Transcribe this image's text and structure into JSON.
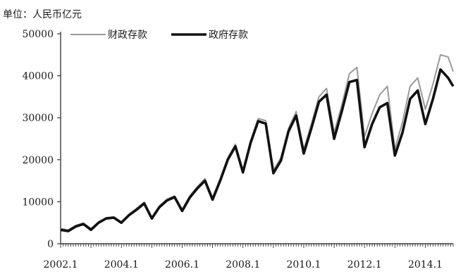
{
  "chart_data": {
    "type": "line",
    "unit_label": "单位：人民币亿元",
    "x_ticks": [
      "2002.1",
      "2004.1",
      "2006.1",
      "2008.1",
      "2010.1",
      "2012.1",
      "2014.1"
    ],
    "y_ticks": [
      "0",
      "10000",
      "20000",
      "30000",
      "40000",
      "50000"
    ],
    "ylim": [
      0,
      50000
    ],
    "xlim": [
      "2002-01",
      "2014-12"
    ],
    "grid": false,
    "legend_position": "top-left",
    "series": [
      {
        "name": "财政存款",
        "color": "#9a9a9a",
        "points": [
          [
            "2002-01",
            3600
          ],
          [
            "2002-04",
            3300
          ],
          [
            "2002-07",
            4400
          ],
          [
            "2002-10",
            4900
          ],
          [
            "2003-01",
            3600
          ],
          [
            "2003-04",
            5200
          ],
          [
            "2003-07",
            6200
          ],
          [
            "2003-10",
            6400
          ],
          [
            "2004-01",
            5200
          ],
          [
            "2004-04",
            7000
          ],
          [
            "2004-07",
            8400
          ],
          [
            "2004-10",
            9900
          ],
          [
            "2005-01",
            6300
          ],
          [
            "2005-04",
            9000
          ],
          [
            "2005-07",
            10600
          ],
          [
            "2005-10",
            11400
          ],
          [
            "2006-01",
            8200
          ],
          [
            "2006-04",
            11400
          ],
          [
            "2006-07",
            13600
          ],
          [
            "2006-10",
            15500
          ],
          [
            "2007-01",
            11000
          ],
          [
            "2007-04",
            15500
          ],
          [
            "2007-07",
            20500
          ],
          [
            "2007-10",
            23700
          ],
          [
            "2008-01",
            17500
          ],
          [
            "2008-04",
            24500
          ],
          [
            "2008-07",
            29800
          ],
          [
            "2008-10",
            29300
          ],
          [
            "2009-01",
            17500
          ],
          [
            "2009-04",
            20500
          ],
          [
            "2009-07",
            27500
          ],
          [
            "2009-10",
            31500
          ],
          [
            "2010-01",
            22500
          ],
          [
            "2010-04",
            28500
          ],
          [
            "2010-07",
            35000
          ],
          [
            "2010-10",
            37000
          ],
          [
            "2011-01",
            26500
          ],
          [
            "2011-04",
            33000
          ],
          [
            "2011-07",
            40500
          ],
          [
            "2011-10",
            42000
          ],
          [
            "2012-01",
            25500
          ],
          [
            "2012-04",
            31000
          ],
          [
            "2012-07",
            35500
          ],
          [
            "2012-10",
            37500
          ],
          [
            "2013-01",
            22500
          ],
          [
            "2013-04",
            29000
          ],
          [
            "2013-07",
            37500
          ],
          [
            "2013-10",
            39500
          ],
          [
            "2014-01",
            32000
          ],
          [
            "2014-04",
            38000
          ],
          [
            "2014-07",
            45000
          ],
          [
            "2014-10",
            44500
          ],
          [
            "2014-12",
            41000
          ]
        ]
      },
      {
        "name": "政府存款",
        "color": "#111111",
        "points": [
          [
            "2002-01",
            3300
          ],
          [
            "2002-04",
            3000
          ],
          [
            "2002-07",
            4100
          ],
          [
            "2002-10",
            4700
          ],
          [
            "2003-01",
            3300
          ],
          [
            "2003-04",
            5000
          ],
          [
            "2003-07",
            6000
          ],
          [
            "2003-10",
            6200
          ],
          [
            "2004-01",
            5000
          ],
          [
            "2004-04",
            6800
          ],
          [
            "2004-07",
            8100
          ],
          [
            "2004-10",
            9600
          ],
          [
            "2005-01",
            6000
          ],
          [
            "2005-04",
            8700
          ],
          [
            "2005-07",
            10300
          ],
          [
            "2005-10",
            11100
          ],
          [
            "2006-01",
            7800
          ],
          [
            "2006-04",
            11000
          ],
          [
            "2006-07",
            13200
          ],
          [
            "2006-10",
            15000
          ],
          [
            "2007-01",
            10500
          ],
          [
            "2007-04",
            15000
          ],
          [
            "2007-07",
            20000
          ],
          [
            "2007-10",
            23200
          ],
          [
            "2008-01",
            17000
          ],
          [
            "2008-04",
            24000
          ],
          [
            "2008-07",
            29200
          ],
          [
            "2008-10",
            28600
          ],
          [
            "2009-01",
            16800
          ],
          [
            "2009-04",
            19800
          ],
          [
            "2009-07",
            26800
          ],
          [
            "2009-10",
            30500
          ],
          [
            "2010-01",
            21500
          ],
          [
            "2010-04",
            27500
          ],
          [
            "2010-07",
            33800
          ],
          [
            "2010-10",
            35500
          ],
          [
            "2011-01",
            25000
          ],
          [
            "2011-04",
            31500
          ],
          [
            "2011-07",
            38500
          ],
          [
            "2011-10",
            39000
          ],
          [
            "2012-01",
            23000
          ],
          [
            "2012-04",
            28500
          ],
          [
            "2012-07",
            32500
          ],
          [
            "2012-10",
            33500
          ],
          [
            "2013-01",
            21000
          ],
          [
            "2013-04",
            26500
          ],
          [
            "2013-07",
            34500
          ],
          [
            "2013-10",
            36500
          ],
          [
            "2014-01",
            28500
          ],
          [
            "2014-04",
            34500
          ],
          [
            "2014-07",
            41500
          ],
          [
            "2014-10",
            39500
          ],
          [
            "2014-12",
            37500
          ]
        ]
      }
    ]
  }
}
